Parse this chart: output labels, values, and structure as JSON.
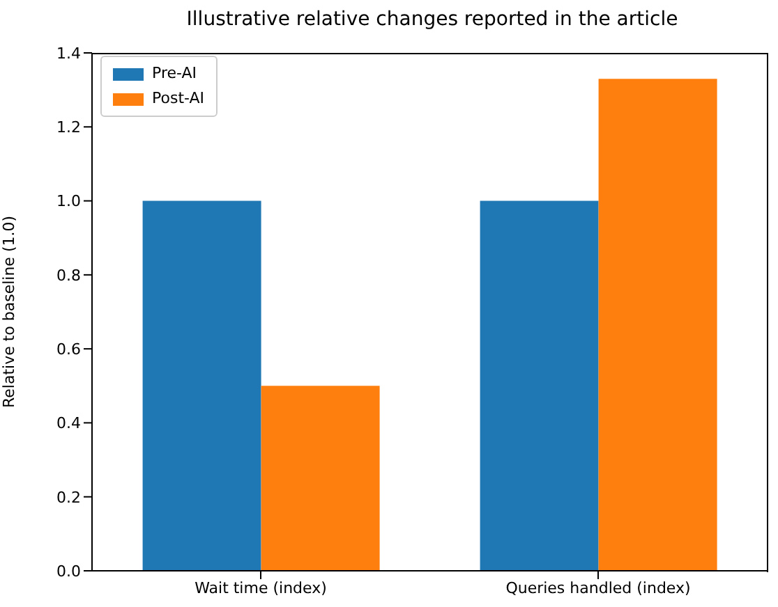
{
  "chart_data": {
    "type": "bar",
    "title": "Illustrative relative changes reported in the article",
    "ylabel": "Relative to baseline (1.0)",
    "categories": [
      "Wait time (index)",
      "Queries handled (index)"
    ],
    "series": [
      {
        "name": "Pre-AI",
        "color": "#1f77b4",
        "values": [
          1.0,
          1.0
        ]
      },
      {
        "name": "Post-AI",
        "color": "#ff7f0e",
        "values": [
          0.5,
          1.33
        ]
      }
    ],
    "ylim": [
      0,
      1.4
    ],
    "yticks": [
      {
        "value": 0,
        "label": "0.0"
      },
      {
        "value": 0.2,
        "label": "0.2"
      },
      {
        "value": 0.4,
        "label": "0.4"
      },
      {
        "value": 0.6,
        "label": "0.6"
      },
      {
        "value": 0.8,
        "label": "0.8"
      },
      {
        "value": 1,
        "label": "1.0"
      },
      {
        "value": 1.2,
        "label": "1.2"
      },
      {
        "value": 1.4,
        "label": "1.4"
      }
    ],
    "grid": false,
    "legend": "top left"
  }
}
